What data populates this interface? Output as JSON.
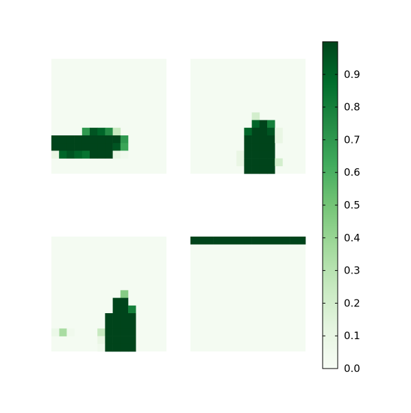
{
  "chart_data": {
    "type": "heatmap",
    "colormap": "Greens",
    "colormap_stops": [
      "#f7fcf5",
      "#e5f5e0",
      "#c7e9c0",
      "#a1d99b",
      "#74c476",
      "#41ab5d",
      "#238b45",
      "#006d2c",
      "#00441b"
    ],
    "grid": false,
    "panels": [
      {
        "rows": 15,
        "cols": 15,
        "background_value": 0.02,
        "cells": [
          {
            "r": 9,
            "c": 4,
            "v": 0.7
          },
          {
            "r": 9,
            "c": 5,
            "v": 0.95
          },
          {
            "r": 9,
            "c": 6,
            "v": 0.9
          },
          {
            "r": 9,
            "c": 7,
            "v": 0.75
          },
          {
            "r": 9,
            "c": 8,
            "v": 0.25
          },
          {
            "r": 10,
            "c": 0,
            "v": 1.0
          },
          {
            "r": 10,
            "c": 1,
            "v": 1.0
          },
          {
            "r": 10,
            "c": 2,
            "v": 1.0
          },
          {
            "r": 10,
            "c": 3,
            "v": 1.0
          },
          {
            "r": 10,
            "c": 4,
            "v": 1.0
          },
          {
            "r": 10,
            "c": 5,
            "v": 1.0
          },
          {
            "r": 10,
            "c": 6,
            "v": 1.0
          },
          {
            "r": 10,
            "c": 7,
            "v": 1.0
          },
          {
            "r": 10,
            "c": 8,
            "v": 1.0
          },
          {
            "r": 10,
            "c": 9,
            "v": 0.7
          },
          {
            "r": 11,
            "c": 0,
            "v": 1.0
          },
          {
            "r": 11,
            "c": 1,
            "v": 1.0
          },
          {
            "r": 11,
            "c": 2,
            "v": 1.0
          },
          {
            "r": 11,
            "c": 3,
            "v": 1.0
          },
          {
            "r": 11,
            "c": 4,
            "v": 1.0
          },
          {
            "r": 11,
            "c": 5,
            "v": 1.0
          },
          {
            "r": 11,
            "c": 6,
            "v": 1.0
          },
          {
            "r": 11,
            "c": 7,
            "v": 1.0
          },
          {
            "r": 11,
            "c": 8,
            "v": 0.95
          },
          {
            "r": 11,
            "c": 9,
            "v": 0.65
          },
          {
            "r": 12,
            "c": 0,
            "v": 0.1
          },
          {
            "r": 12,
            "c": 1,
            "v": 0.9
          },
          {
            "r": 12,
            "c": 2,
            "v": 0.95
          },
          {
            "r": 12,
            "c": 3,
            "v": 0.9
          },
          {
            "r": 12,
            "c": 4,
            "v": 0.85
          },
          {
            "r": 12,
            "c": 5,
            "v": 1.0
          },
          {
            "r": 12,
            "c": 6,
            "v": 1.0
          },
          {
            "r": 12,
            "c": 7,
            "v": 1.0
          },
          {
            "r": 12,
            "c": 8,
            "v": 0.1
          },
          {
            "r": 12,
            "c": 9,
            "v": 0.05
          }
        ]
      },
      {
        "rows": 15,
        "cols": 15,
        "background_value": 0.02,
        "cells": [
          {
            "r": 7,
            "c": 8,
            "v": 0.2
          },
          {
            "r": 8,
            "c": 8,
            "v": 0.9
          },
          {
            "r": 8,
            "c": 9,
            "v": 1.0
          },
          {
            "r": 8,
            "c": 10,
            "v": 0.8
          },
          {
            "r": 9,
            "c": 7,
            "v": 0.9
          },
          {
            "r": 9,
            "c": 8,
            "v": 1.0
          },
          {
            "r": 9,
            "c": 9,
            "v": 1.0
          },
          {
            "r": 9,
            "c": 10,
            "v": 0.95
          },
          {
            "r": 9,
            "c": 11,
            "v": 0.1
          },
          {
            "r": 10,
            "c": 7,
            "v": 1.0
          },
          {
            "r": 10,
            "c": 8,
            "v": 1.0
          },
          {
            "r": 10,
            "c": 9,
            "v": 1.0
          },
          {
            "r": 10,
            "c": 10,
            "v": 1.0
          },
          {
            "r": 10,
            "c": 11,
            "v": 0.1
          },
          {
            "r": 11,
            "c": 7,
            "v": 1.0
          },
          {
            "r": 11,
            "c": 8,
            "v": 1.0
          },
          {
            "r": 11,
            "c": 9,
            "v": 1.0
          },
          {
            "r": 11,
            "c": 10,
            "v": 1.0
          },
          {
            "r": 12,
            "c": 6,
            "v": 0.1
          },
          {
            "r": 12,
            "c": 7,
            "v": 1.0
          },
          {
            "r": 12,
            "c": 8,
            "v": 1.0
          },
          {
            "r": 12,
            "c": 9,
            "v": 1.0
          },
          {
            "r": 12,
            "c": 10,
            "v": 1.0
          },
          {
            "r": 13,
            "c": 6,
            "v": 0.1
          },
          {
            "r": 13,
            "c": 7,
            "v": 1.0
          },
          {
            "r": 13,
            "c": 8,
            "v": 1.0
          },
          {
            "r": 13,
            "c": 9,
            "v": 1.0
          },
          {
            "r": 13,
            "c": 10,
            "v": 1.0
          },
          {
            "r": 13,
            "c": 11,
            "v": 0.2
          },
          {
            "r": 14,
            "c": 7,
            "v": 1.0
          },
          {
            "r": 14,
            "c": 8,
            "v": 1.0
          },
          {
            "r": 14,
            "c": 9,
            "v": 1.0
          },
          {
            "r": 14,
            "c": 10,
            "v": 1.0
          }
        ]
      },
      {
        "rows": 15,
        "cols": 15,
        "background_value": 0.02,
        "cells": [
          {
            "r": 7,
            "c": 9,
            "v": 0.45
          },
          {
            "r": 8,
            "c": 8,
            "v": 1.0
          },
          {
            "r": 8,
            "c": 9,
            "v": 1.0
          },
          {
            "r": 9,
            "c": 8,
            "v": 1.0
          },
          {
            "r": 9,
            "c": 9,
            "v": 1.0
          },
          {
            "r": 9,
            "c": 10,
            "v": 0.8
          },
          {
            "r": 10,
            "c": 7,
            "v": 1.0
          },
          {
            "r": 10,
            "c": 8,
            "v": 1.0
          },
          {
            "r": 10,
            "c": 9,
            "v": 1.0
          },
          {
            "r": 10,
            "c": 10,
            "v": 1.0
          },
          {
            "r": 11,
            "c": 7,
            "v": 1.0
          },
          {
            "r": 11,
            "c": 8,
            "v": 1.0
          },
          {
            "r": 11,
            "c": 9,
            "v": 1.0
          },
          {
            "r": 11,
            "c": 10,
            "v": 1.0
          },
          {
            "r": 12,
            "c": 1,
            "v": 0.35
          },
          {
            "r": 12,
            "c": 0,
            "v": 0.08
          },
          {
            "r": 12,
            "c": 2,
            "v": 0.05
          },
          {
            "r": 12,
            "c": 6,
            "v": 0.25
          },
          {
            "r": 12,
            "c": 7,
            "v": 1.0
          },
          {
            "r": 12,
            "c": 8,
            "v": 1.0
          },
          {
            "r": 12,
            "c": 9,
            "v": 1.0
          },
          {
            "r": 12,
            "c": 10,
            "v": 1.0
          },
          {
            "r": 13,
            "c": 6,
            "v": 0.1
          },
          {
            "r": 13,
            "c": 7,
            "v": 1.0
          },
          {
            "r": 13,
            "c": 8,
            "v": 1.0
          },
          {
            "r": 13,
            "c": 9,
            "v": 1.0
          },
          {
            "r": 13,
            "c": 10,
            "v": 1.0
          },
          {
            "r": 14,
            "c": 6,
            "v": 0.05
          },
          {
            "r": 14,
            "c": 7,
            "v": 1.0
          },
          {
            "r": 14,
            "c": 8,
            "v": 1.0
          },
          {
            "r": 14,
            "c": 9,
            "v": 1.0
          },
          {
            "r": 14,
            "c": 10,
            "v": 1.0
          }
        ]
      },
      {
        "rows": 15,
        "cols": 15,
        "background_value": 0.02,
        "cells": [
          {
            "r": 0,
            "c": 0,
            "v": 1.0
          },
          {
            "r": 0,
            "c": 1,
            "v": 1.0
          },
          {
            "r": 0,
            "c": 2,
            "v": 1.0
          },
          {
            "r": 0,
            "c": 3,
            "v": 1.0
          },
          {
            "r": 0,
            "c": 4,
            "v": 1.0
          },
          {
            "r": 0,
            "c": 5,
            "v": 1.0
          },
          {
            "r": 0,
            "c": 6,
            "v": 1.0
          },
          {
            "r": 0,
            "c": 7,
            "v": 1.0
          },
          {
            "r": 0,
            "c": 8,
            "v": 1.0
          },
          {
            "r": 0,
            "c": 9,
            "v": 1.0
          },
          {
            "r": 0,
            "c": 10,
            "v": 1.0
          },
          {
            "r": 0,
            "c": 11,
            "v": 1.0
          },
          {
            "r": 0,
            "c": 12,
            "v": 1.0
          },
          {
            "r": 0,
            "c": 13,
            "v": 1.0
          },
          {
            "r": 0,
            "c": 14,
            "v": 1.0
          }
        ]
      }
    ],
    "colorbar": {
      "vmin": 0.0,
      "vmax": 1.0,
      "ticks": [
        0.0,
        0.1,
        0.2,
        0.3,
        0.4,
        0.5,
        0.6,
        0.7,
        0.8,
        0.9
      ],
      "tick_labels": [
        "0.0",
        "0.1",
        "0.2",
        "0.3",
        "0.4",
        "0.5",
        "0.6",
        "0.7",
        "0.8",
        "0.9"
      ]
    }
  }
}
